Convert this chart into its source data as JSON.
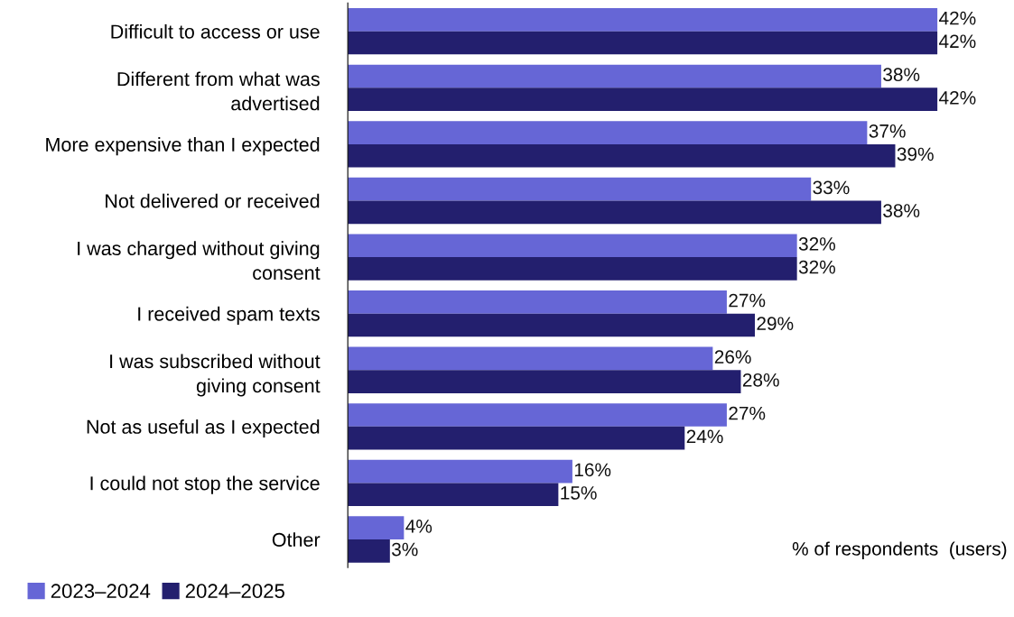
{
  "chart_data": {
    "type": "bar",
    "orientation": "horizontal",
    "categories": [
      "Difficult to access or use",
      "Different from what was advertised",
      "More expensive than I expected",
      "Not delivered or received",
      "I was charged without giving consent",
      "I received spam texts",
      "I was subscribed without giving consent",
      "Not as useful as I expected",
      "I could not stop the service",
      "Other"
    ],
    "series": [
      {
        "name": "2023–2024",
        "color": "#6666d6",
        "values": [
          42,
          38,
          37,
          33,
          32,
          27,
          26,
          27,
          16,
          4
        ],
        "value_labels": [
          "42%",
          "38%",
          "37%",
          "33%",
          "32%",
          "27%",
          "26%",
          "27%",
          "16%",
          "4%"
        ]
      },
      {
        "name": "2024–2025",
        "color": "#231f6e",
        "values": [
          42,
          42,
          39,
          38,
          32,
          29,
          28,
          24,
          15,
          3
        ],
        "value_labels": [
          "42%",
          "42%",
          "39%",
          "38%",
          "32%",
          "29%",
          "28%",
          "24%",
          "15%",
          "3%"
        ]
      }
    ],
    "annotations": [
      "% of respondents  (users)"
    ],
    "legend": "bottom left",
    "grid": false
  }
}
